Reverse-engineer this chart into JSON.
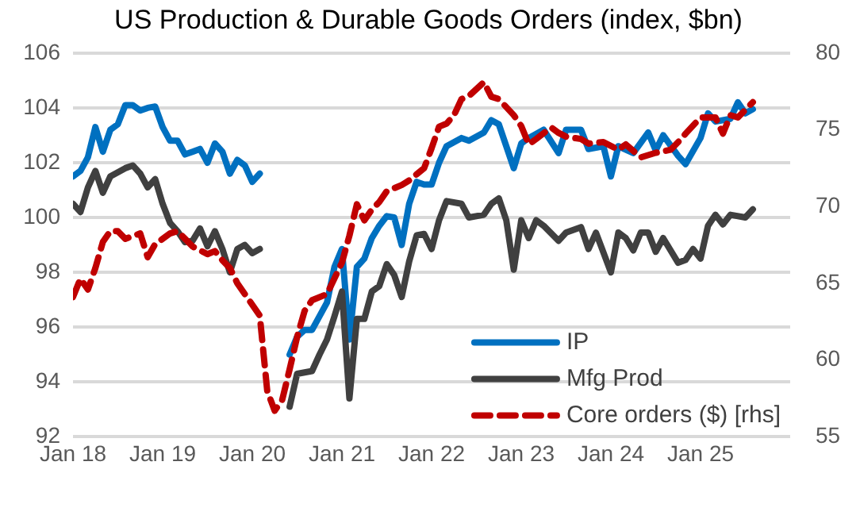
{
  "chart_data": {
    "type": "line",
    "title": "US Production & Durable Goods Orders (index, $bn)",
    "xlim": [
      "2018-01",
      "2026-01"
    ],
    "xticks": [
      {
        "value": "2018-01",
        "label": "Jan 18"
      },
      {
        "value": "2019-01",
        "label": "Jan 19"
      },
      {
        "value": "2020-01",
        "label": "Jan 20"
      },
      {
        "value": "2021-01",
        "label": "Jan 21"
      },
      {
        "value": "2022-01",
        "label": "Jan 22"
      },
      {
        "value": "2023-01",
        "label": "Jan 23"
      },
      {
        "value": "2024-01",
        "label": "Jan 24"
      },
      {
        "value": "2025-01",
        "label": "Jan 25"
      }
    ],
    "ylim": [
      92,
      106
    ],
    "yticks": [
      92,
      94,
      96,
      98,
      100,
      102,
      104,
      106
    ],
    "y2lim": [
      55,
      80
    ],
    "y2ticks": [
      55,
      60,
      65,
      70,
      75,
      80
    ],
    "grid": "y",
    "legend": "bottom right",
    "marker": "none",
    "series": [
      {
        "name": "IP",
        "color": "#0070c0",
        "line_style": "solid",
        "x": [
          "2018-01",
          "2018-02",
          "2018-03",
          "2018-04",
          "2018-05",
          "2018-06",
          "2018-07",
          "2018-08",
          "2018-09",
          "2018-10",
          "2018-11",
          "2018-12",
          "2019-01",
          "2019-02",
          "2019-03",
          "2019-04",
          "2019-05",
          "2019-06",
          "2019-07",
          "2019-08",
          "2019-09",
          "2019-10",
          "2019-11",
          "2019-12",
          "2020-01",
          "2020-02",
          "2020-03",
          "2020-04",
          "2020-05",
          "2020-06",
          "2020-07",
          "2020-08",
          "2020-09",
          "2020-10",
          "2020-11",
          "2020-12",
          "2021-01",
          "2021-02",
          "2021-03",
          "2021-04",
          "2021-05",
          "2021-06",
          "2021-07",
          "2021-08",
          "2021-09",
          "2021-10",
          "2021-11",
          "2021-12",
          "2022-01",
          "2022-02",
          "2022-03",
          "2022-05",
          "2022-06",
          "2022-08",
          "2022-09",
          "2022-10",
          "2022-12",
          "2023-01",
          "2023-02",
          "2023-04",
          "2023-06",
          "2023-07",
          "2023-09",
          "2023-10",
          "2023-12",
          "2024-01",
          "2024-02",
          "2024-04",
          "2024-06",
          "2024-07",
          "2024-08",
          "2024-10",
          "2024-11",
          "2025-01",
          "2025-02",
          "2025-03",
          "2025-05",
          "2025-06",
          "2025-07",
          "2025-08"
        ],
        "values": [
          101.5,
          101.7,
          102.2,
          103.3,
          102.4,
          103.2,
          103.4,
          104.1,
          104.1,
          103.9,
          104.0,
          104.05,
          103.3,
          102.8,
          102.8,
          102.3,
          102.4,
          102.5,
          102.0,
          102.7,
          102.4,
          101.6,
          102.1,
          101.9,
          101.3,
          101.6,
          null,
          null,
          null,
          95.0,
          95.65,
          95.9,
          95.9,
          96.4,
          96.9,
          98.2,
          98.85,
          95.55,
          98.2,
          98.5,
          99.25,
          99.7,
          100.05,
          100.0,
          99.0,
          100.5,
          101.3,
          101.2,
          101.2,
          102.0,
          102.6,
          102.9,
          102.8,
          103.1,
          103.55,
          103.4,
          101.8,
          102.7,
          102.9,
          103.2,
          102.35,
          103.2,
          103.2,
          102.5,
          102.6,
          101.5,
          102.6,
          102.35,
          103.1,
          102.45,
          103.0,
          102.25,
          101.95,
          102.9,
          103.8,
          103.5,
          103.6,
          104.2,
          103.8,
          103.95
        ]
      },
      {
        "name": "Mfg Prod",
        "color": "#404040",
        "line_style": "solid",
        "x": [
          "2018-01",
          "2018-02",
          "2018-03",
          "2018-04",
          "2018-05",
          "2018-06",
          "2018-08",
          "2018-09",
          "2018-10",
          "2018-11",
          "2018-12",
          "2019-01",
          "2019-02",
          "2019-03",
          "2019-04",
          "2019-05",
          "2019-06",
          "2019-07",
          "2019-08",
          "2019-09",
          "2019-10",
          "2019-11",
          "2019-12",
          "2020-01",
          "2020-02",
          "2020-03",
          "2020-04",
          "2020-05",
          "2020-06",
          "2020-07",
          "2020-09",
          "2020-10",
          "2020-11",
          "2020-12",
          "2021-01",
          "2021-02",
          "2021-03",
          "2021-04",
          "2021-05",
          "2021-06",
          "2021-07",
          "2021-08",
          "2021-09",
          "2021-10",
          "2021-11",
          "2021-12",
          "2022-01",
          "2022-02",
          "2022-03",
          "2022-05",
          "2022-06",
          "2022-08",
          "2022-09",
          "2022-10",
          "2022-11",
          "2022-12",
          "2023-01",
          "2023-02",
          "2023-03",
          "2023-04",
          "2023-06",
          "2023-07",
          "2023-09",
          "2023-10",
          "2023-11",
          "2024-01",
          "2024-02",
          "2024-03",
          "2024-04",
          "2024-05",
          "2024-06",
          "2024-07",
          "2024-08",
          "2024-10",
          "2024-11",
          "2024-12",
          "2025-01",
          "2025-02",
          "2025-03",
          "2025-04",
          "2025-05",
          "2025-07",
          "2025-08"
        ],
        "values": [
          100.5,
          100.2,
          101.1,
          101.7,
          100.9,
          101.5,
          101.8,
          101.9,
          101.6,
          101.1,
          101.4,
          100.5,
          99.8,
          99.5,
          99.1,
          99.15,
          99.6,
          98.95,
          99.5,
          98.85,
          98.0,
          98.85,
          99.0,
          98.7,
          98.85,
          null,
          null,
          null,
          93.1,
          94.3,
          94.4,
          95.0,
          95.55,
          96.4,
          97.3,
          93.4,
          96.3,
          96.3,
          97.3,
          97.5,
          98.3,
          97.9,
          97.1,
          98.4,
          99.35,
          99.4,
          98.85,
          99.9,
          100.6,
          100.5,
          100.0,
          100.1,
          100.5,
          100.7,
          99.9,
          98.1,
          99.9,
          99.25,
          99.9,
          99.7,
          99.15,
          99.45,
          99.65,
          98.85,
          99.45,
          98.0,
          99.45,
          99.25,
          98.8,
          99.45,
          99.45,
          98.75,
          99.25,
          98.35,
          98.45,
          98.85,
          98.5,
          99.7,
          100.1,
          99.75,
          100.1,
          100.0,
          100.3
        ]
      },
      {
        "name": "Core orders ($) [rhs]",
        "color": "#c00000",
        "line_style": "dashed",
        "axis": "y2",
        "x": [
          "2018-01",
          "2018-02",
          "2018-03",
          "2018-04",
          "2018-05",
          "2018-06",
          "2018-07",
          "2018-08",
          "2018-10",
          "2018-11",
          "2018-12",
          "2019-02",
          "2019-03",
          "2019-04",
          "2019-05",
          "2019-07",
          "2019-08",
          "2019-09",
          "2019-10",
          "2019-11",
          "2020-01",
          "2020-02",
          "2020-03",
          "2020-04",
          "2020-05",
          "2020-06",
          "2020-07",
          "2020-08",
          "2020-09",
          "2020-11",
          "2021-01",
          "2021-02",
          "2021-03",
          "2021-04",
          "2021-05",
          "2021-06",
          "2021-07",
          "2021-09",
          "2021-10",
          "2021-12",
          "2022-01",
          "2022-02",
          "2022-03",
          "2022-04",
          "2022-05",
          "2022-06",
          "2022-08",
          "2022-09",
          "2022-10",
          "2022-12",
          "2023-01",
          "2023-02",
          "2023-03",
          "2023-05",
          "2023-06",
          "2023-07",
          "2023-09",
          "2023-10",
          "2023-12",
          "2024-02",
          "2024-03",
          "2024-05",
          "2024-07",
          "2024-09",
          "2024-10",
          "2024-11",
          "2025-01",
          "2025-02",
          "2025-03",
          "2025-04",
          "2025-05",
          "2025-06",
          "2025-07",
          "2025-08"
        ],
        "values": [
          64.1,
          65.3,
          64.6,
          66.0,
          67.7,
          68.4,
          68.4,
          67.9,
          68.25,
          66.7,
          67.55,
          68.25,
          68.4,
          67.9,
          67.4,
          66.9,
          67.1,
          66.5,
          66.0,
          65.0,
          63.6,
          62.9,
          58.0,
          56.7,
          57.4,
          59.4,
          61.5,
          63.2,
          63.9,
          64.3,
          66.35,
          68.1,
          70.15,
          69.1,
          69.8,
          70.3,
          71.0,
          71.4,
          71.7,
          72.5,
          73.8,
          75.2,
          75.4,
          75.95,
          77.0,
          77.2,
          78.1,
          77.15,
          77.0,
          75.95,
          75.25,
          74.05,
          74.4,
          75.15,
          74.8,
          74.55,
          74.4,
          74.1,
          74.2,
          73.7,
          74.05,
          73.2,
          73.5,
          73.7,
          74.2,
          74.75,
          75.8,
          75.8,
          75.8,
          74.75,
          75.95,
          75.8,
          76.3,
          76.8
        ]
      }
    ]
  }
}
